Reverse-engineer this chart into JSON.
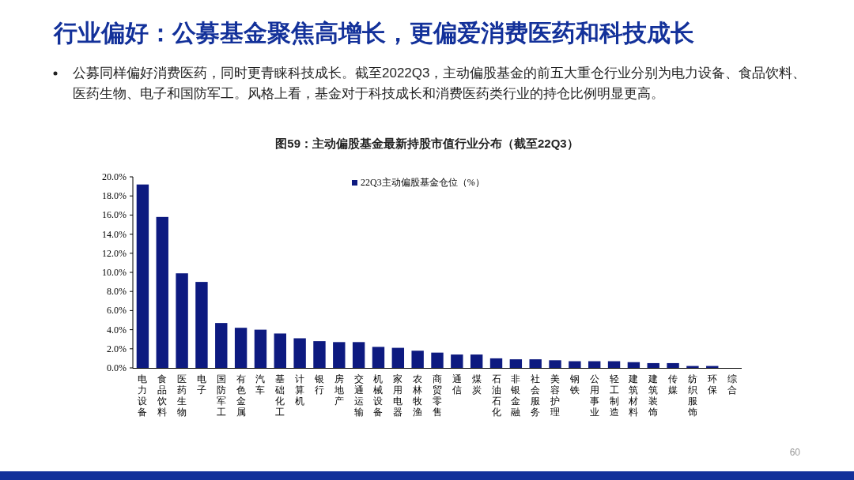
{
  "chart_data": {
    "type": "bar",
    "title": "行业偏好：公募基金聚焦高增长，更偏爱消费医药和科技成长",
    "subtitle": "公募同样偏好消费医药，同时更青睐科技成长。截至2022Q3，主动偏股基金的前五大重仓行业分别为电力设备、食品饮料、医药生物、电子和国防军工。风格上看，基金对于科技成长和消费医药类行业的持仓比例明显更高。",
    "annotations": [
      "图59：主动偏股基金最新持股市值行业分布（截至22Q3）",
      "60"
    ],
    "categories": [
      "电力设备",
      "食品饮料",
      "医药生物",
      "电子",
      "国防军工",
      "有色金属",
      "汽车",
      "基础化工",
      "计算机",
      "银行",
      "房地产",
      "交通运输",
      "机械设备",
      "家用电器",
      "农林牧渔",
      "商贸零售",
      "通信",
      "煤炭",
      "石油石化",
      "非银金融",
      "社会服务",
      "美容护理",
      "钢铁",
      "公用事业",
      "轻工制造",
      "建筑材料",
      "建筑装饰",
      "传媒",
      "纺织服饰",
      "环保",
      "综合"
    ],
    "series": [
      {
        "name": "22Q3主动偏股基金仓位（%）",
        "color": "#0d1a80",
        "values": [
          19.2,
          15.8,
          9.9,
          9.0,
          4.7,
          4.2,
          4.0,
          3.6,
          3.1,
          2.8,
          2.7,
          2.7,
          2.2,
          2.1,
          1.8,
          1.6,
          1.4,
          1.4,
          1.0,
          0.9,
          0.9,
          0.8,
          0.7,
          0.7,
          0.7,
          0.6,
          0.5,
          0.5,
          0.2,
          0.2,
          0.0
        ]
      }
    ],
    "ylim": [
      0,
      20
    ],
    "yticks": [
      {
        "value": 0,
        "label": "0.0%"
      },
      {
        "value": 2,
        "label": "2.0%"
      },
      {
        "value": 4,
        "label": "4.0%"
      },
      {
        "value": 6,
        "label": "6.0%"
      },
      {
        "value": 8,
        "label": "8.0%"
      },
      {
        "value": 10,
        "label": "10.0%"
      },
      {
        "value": 12,
        "label": "12.0%"
      },
      {
        "value": 14,
        "label": "14.0%"
      },
      {
        "value": 16,
        "label": "16.0%"
      },
      {
        "value": 18,
        "label": "18.0%"
      },
      {
        "value": 20,
        "label": "20.0%"
      }
    ],
    "legend": "top right",
    "grid": false
  }
}
